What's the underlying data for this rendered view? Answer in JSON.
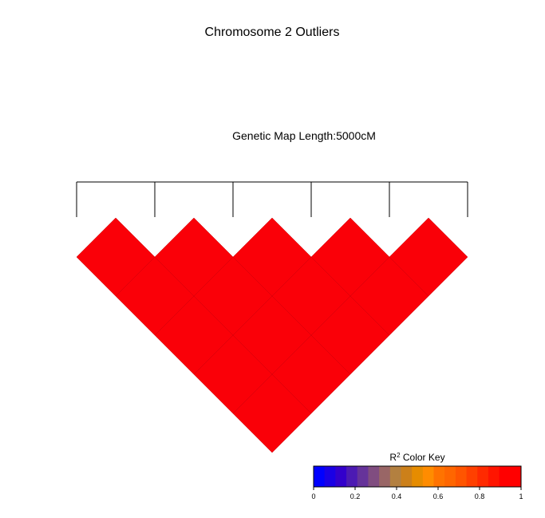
{
  "chart_data": {
    "type": "heatmap",
    "title": "Chromosome 2 Outliers",
    "subtitle": "Genetic Map Length:5000cM",
    "n_markers": 6,
    "ld_matrix": [
      [
        1,
        1,
        1,
        1,
        1
      ],
      [
        1,
        1,
        1,
        1
      ],
      [
        1,
        1,
        1
      ],
      [
        1,
        1
      ],
      [
        1
      ]
    ],
    "color_key": {
      "title_prefix": "R",
      "title_sup": "2",
      "title_suffix": " Color Key",
      "ticks": [
        "0",
        "0.2",
        "0.4",
        "0.6",
        "0.8",
        "1"
      ],
      "range": [
        0,
        1
      ]
    },
    "colors": {
      "cell": "#FA0008",
      "grid": "#C8000A",
      "palette": [
        "#0000FF",
        "#1A00E5",
        "#3300CC",
        "#4C1AB3",
        "#66339A",
        "#804D80",
        "#996666",
        "#B38040",
        "#CC801A",
        "#E68C00",
        "#FF8C00",
        "#FF7300",
        "#FF6600",
        "#FF5500",
        "#FF4000",
        "#FF2A00",
        "#FF1500",
        "#FF0000",
        "#FF0000"
      ]
    }
  }
}
